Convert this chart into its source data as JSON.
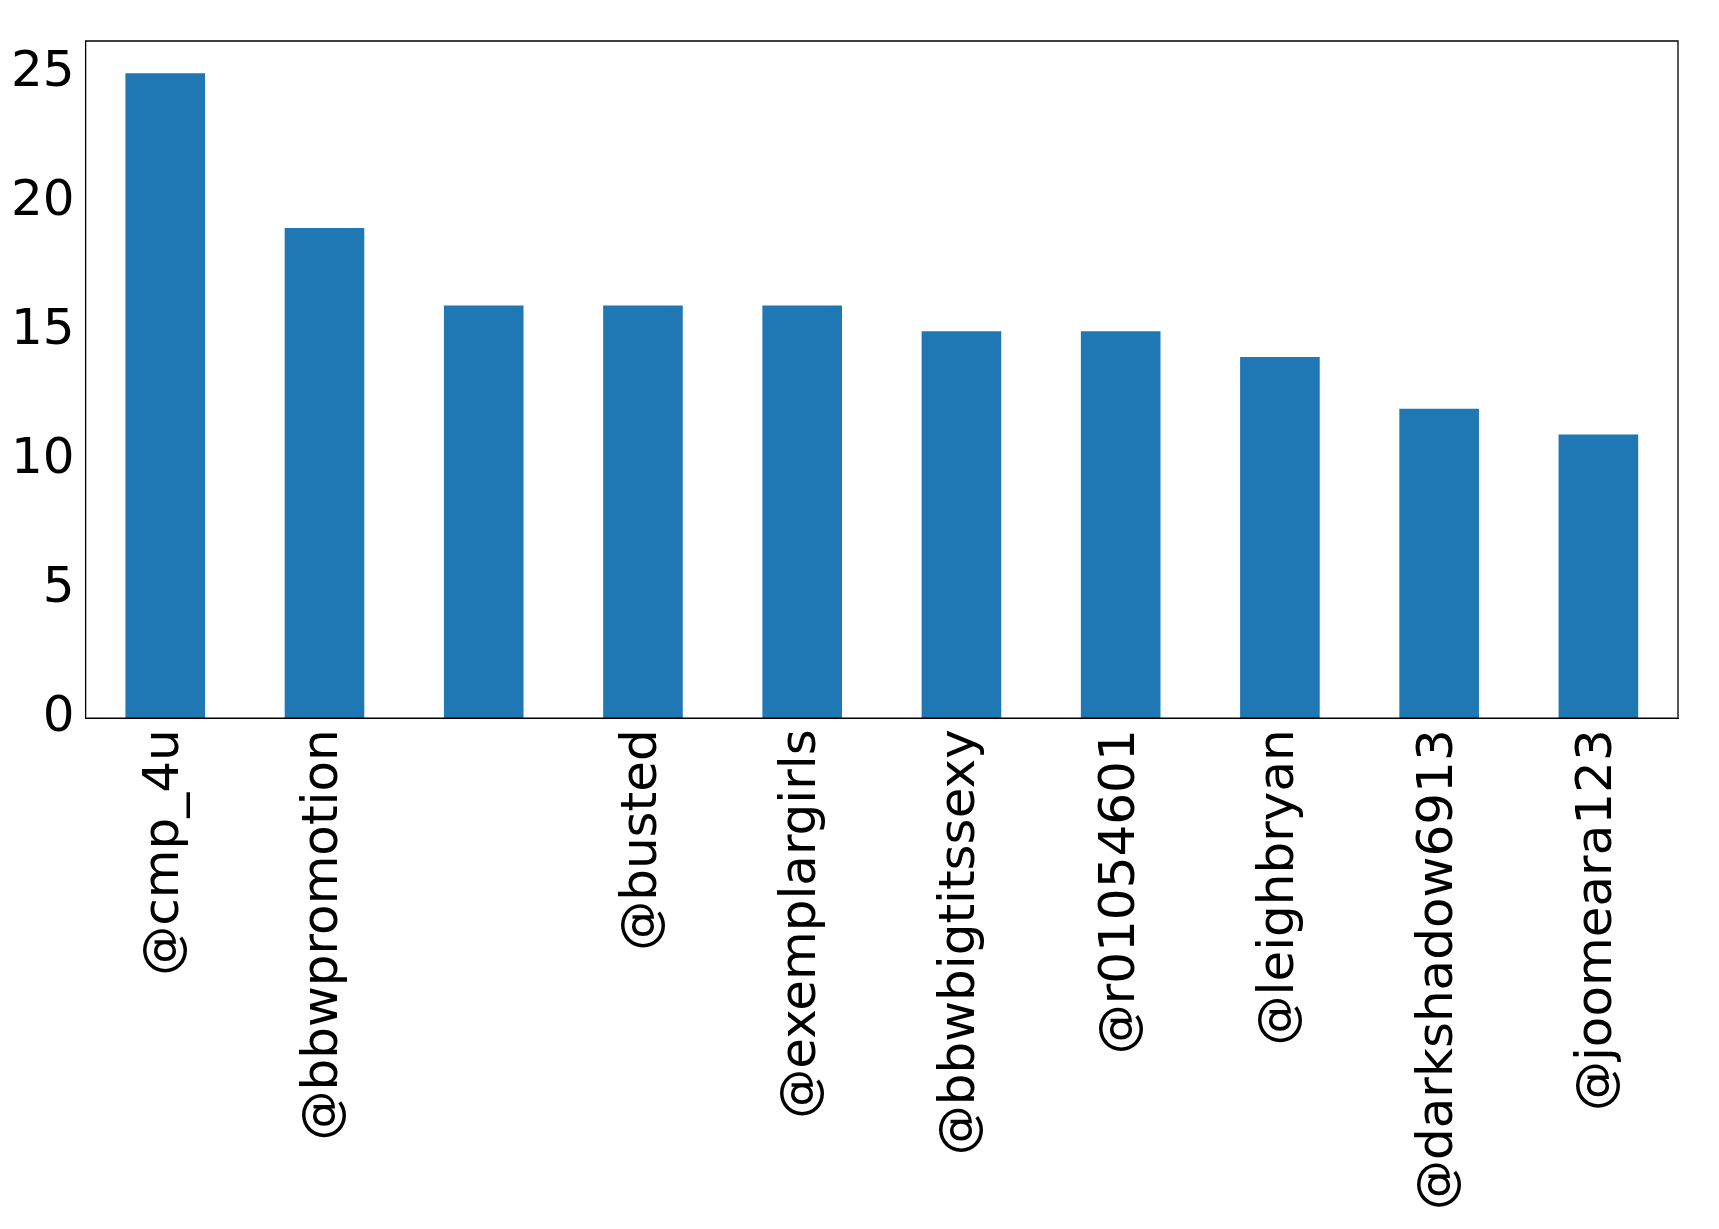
{
  "chart_data": {
    "type": "bar",
    "categories": [
      "@cmp_4u",
      "@bbwpromotion",
      null,
      "@busted",
      "@exemplargirls",
      "@bbwbigtitssexy",
      "@r01054601",
      "@leighbryan",
      "@darkshadow6913",
      "@joomeara123"
    ],
    "values": [
      25,
      19,
      16,
      16,
      16,
      15,
      15,
      14,
      12,
      11
    ],
    "color": "#1f77b4",
    "ylim": [
      0,
      26.25
    ],
    "yticks": [
      0,
      5,
      10,
      15,
      20,
      25
    ],
    "grid": false,
    "legend": false
  }
}
